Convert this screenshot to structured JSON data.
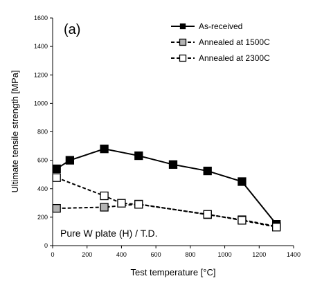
{
  "chart_data": {
    "type": "line",
    "panel_label": "(a)",
    "annotation": "Pure W plate (H) / T.D.",
    "xlabel_prefix": "Test temperature [",
    "xlabel_unit": "°C",
    "xlabel_suffix": "]",
    "ylabel": "Ultimate tensile strength [MPa]",
    "xlim": [
      0,
      1400
    ],
    "ylim": [
      0,
      1600
    ],
    "xticks": [
      0,
      200,
      400,
      600,
      800,
      1000,
      1200,
      1400
    ],
    "yticks": [
      0,
      200,
      400,
      600,
      800,
      1000,
      1200,
      1400,
      1600
    ],
    "grid": false,
    "legend_position": "top-right",
    "series": [
      {
        "name": "As-received",
        "line": "solid",
        "marker": "filled-square",
        "marker_color": "#000000",
        "x": [
          23,
          100,
          300,
          500,
          700,
          900,
          1100,
          1300
        ],
        "y": [
          540,
          600,
          680,
          632,
          570,
          525,
          450,
          150
        ]
      },
      {
        "name": "Annealed at 1500C",
        "line": "dashed",
        "marker": "gray-square",
        "marker_color": "#b3b3b3",
        "x": [
          23,
          300,
          500,
          900,
          1100,
          1300
        ],
        "y": [
          262,
          270,
          292,
          218,
          182,
          135
        ]
      },
      {
        "name": "Annealed at 2300C",
        "line": "dashed",
        "marker": "open-square",
        "marker_color": "#ffffff",
        "x": [
          23,
          300,
          400,
          500,
          900,
          1100,
          1300
        ],
        "y": [
          478,
          350,
          298,
          290,
          220,
          178,
          130
        ]
      }
    ]
  }
}
